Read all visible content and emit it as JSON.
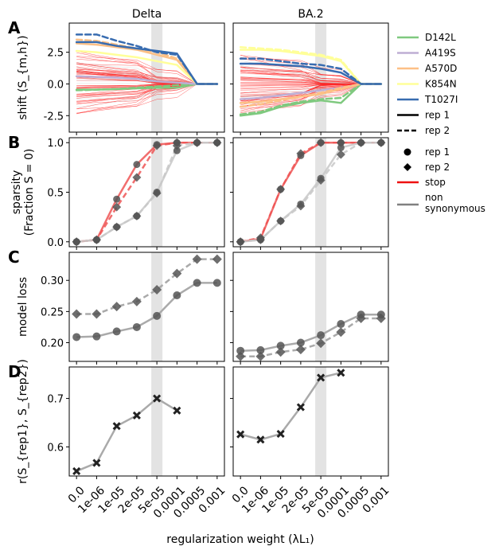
{
  "figure": {
    "x_label": "regularization weight (λL₁)",
    "x_ticks": [
      "0.0",
      "1e-06",
      "1e-05",
      "2e-05",
      "5e-05",
      "0.0001",
      "0.0005",
      "0.001"
    ],
    "columns": [
      "Delta",
      "BA.2"
    ],
    "highlight_x_index": 4
  },
  "legend_top": {
    "entries": [
      {
        "label": "D142L",
        "color": "#7fc97f",
        "style": "solid"
      },
      {
        "label": "A419S",
        "color": "#beaed4",
        "style": "solid"
      },
      {
        "label": "A570D",
        "color": "#fdc086",
        "style": "solid"
      },
      {
        "label": "K854N",
        "color": "#ffff99",
        "style": "solid"
      },
      {
        "label": "T1027I",
        "color": "#386cb0",
        "style": "solid"
      },
      {
        "label": "rep 1",
        "color": "#000000",
        "style": "solid"
      },
      {
        "label": "rep 2",
        "color": "#000000",
        "style": "dashed"
      }
    ]
  },
  "legend_bottom": {
    "entries": [
      {
        "label": "rep 1",
        "marker": "circle"
      },
      {
        "label": "rep 2",
        "marker": "diamond"
      },
      {
        "label": "stop",
        "color": "#ee1111",
        "style": "line"
      },
      {
        "label": "non\nsynonymous",
        "color": "#808080",
        "style": "line"
      }
    ]
  },
  "chart_data": [
    {
      "panel": "A",
      "type": "line",
      "ylabel": "shift (S_{m,h})",
      "ylim": [
        -3.8,
        4.8
      ],
      "yticks": [
        -2.5,
        0.0,
        2.5
      ],
      "subplots": [
        {
          "title": "Delta",
          "series": [
            {
              "name": "D142L",
              "rep": 1,
              "values": [
                -0.45,
                -0.45,
                -0.4,
                -0.35,
                -0.3,
                -0.3,
                0.0,
                0.0
              ]
            },
            {
              "name": "D142L",
              "rep": 2,
              "values": [
                -0.5,
                -0.45,
                -0.4,
                -0.3,
                -0.2,
                -0.1,
                0.0,
                0.0
              ]
            },
            {
              "name": "A419S",
              "rep": 1,
              "values": [
                0.6,
                0.55,
                0.5,
                0.4,
                0.2,
                0.1,
                0.0,
                0.0
              ]
            },
            {
              "name": "A570D",
              "rep": 1,
              "values": [
                3.2,
                3.1,
                2.9,
                2.7,
                2.3,
                1.9,
                0.0,
                0.0
              ]
            },
            {
              "name": "A570D",
              "rep": 2,
              "values": [
                3.5,
                3.4,
                3.1,
                2.8,
                2.5,
                2.0,
                0.0,
                0.0
              ]
            },
            {
              "name": "K854N",
              "rep": 1,
              "values": [
                2.6,
                2.5,
                2.3,
                2.1,
                1.8,
                1.5,
                0.0,
                0.0
              ]
            },
            {
              "name": "T1027I",
              "rep": 1,
              "values": [
                3.3,
                3.3,
                3.0,
                2.8,
                2.6,
                2.4,
                0.0,
                0.0
              ]
            },
            {
              "name": "T1027I",
              "rep": 2,
              "values": [
                3.9,
                3.9,
                3.4,
                3.0,
                2.5,
                2.3,
                0.0,
                0.0
              ]
            }
          ]
        },
        {
          "title": "BA.2",
          "series": [
            {
              "name": "D142L",
              "rep": 1,
              "values": [
                -2.5,
                -2.3,
                -1.8,
                -1.5,
                -1.3,
                -1.5,
                0.0,
                0.0
              ]
            },
            {
              "name": "D142L",
              "rep": 2,
              "values": [
                -2.4,
                -2.2,
                -1.7,
                -1.4,
                -1.2,
                -1.1,
                0.0,
                0.0
              ]
            },
            {
              "name": "A419S",
              "rep": 1,
              "values": [
                -1.2,
                -1.1,
                -0.9,
                -0.7,
                -0.5,
                -0.3,
                0.0,
                0.0
              ]
            },
            {
              "name": "A570D",
              "rep": 1,
              "values": [
                -1.5,
                -1.4,
                -1.2,
                -1.0,
                -0.8,
                -0.4,
                0.0,
                0.0
              ]
            },
            {
              "name": "A570D",
              "rep": 2,
              "values": [
                -1.8,
                -1.6,
                -1.3,
                -1.0,
                -0.7,
                -0.3,
                0.0,
                0.0
              ]
            },
            {
              "name": "K854N",
              "rep": 1,
              "values": [
                2.7,
                2.7,
                2.6,
                2.4,
                2.2,
                1.8,
                0.0,
                0.0
              ]
            },
            {
              "name": "K854N",
              "rep": 2,
              "values": [
                2.9,
                2.8,
                2.7,
                2.5,
                2.3,
                1.9,
                0.0,
                0.0
              ]
            },
            {
              "name": "T1027I",
              "rep": 1,
              "values": [
                1.6,
                1.6,
                1.5,
                1.4,
                1.2,
                0.9,
                0.0,
                0.0
              ]
            },
            {
              "name": "T1027I",
              "rep": 2,
              "values": [
                2.0,
                2.0,
                1.8,
                1.6,
                1.5,
                1.2,
                0.0,
                0.0
              ]
            }
          ]
        }
      ]
    },
    {
      "panel": "B",
      "type": "line",
      "ylabel": "sparsity\n(Fraction S = 0)",
      "ylim": [
        -0.05,
        1.05
      ],
      "yticks": [
        0.0,
        0.5,
        1.0
      ],
      "subplots": [
        {
          "title": "Delta",
          "series": [
            {
              "name": "stop",
              "rep": 1,
              "values": [
                0.0,
                0.02,
                0.43,
                0.78,
                0.98,
                1.0,
                1.0,
                1.0
              ]
            },
            {
              "name": "stop",
              "rep": 2,
              "values": [
                0.0,
                0.02,
                0.35,
                0.65,
                0.97,
                1.0,
                1.0,
                1.0
              ]
            },
            {
              "name": "non synonymous",
              "rep": 1,
              "values": [
                0.0,
                0.02,
                0.15,
                0.26,
                0.5,
                0.92,
                1.0,
                1.0
              ]
            },
            {
              "name": "non synonymous",
              "rep": 2,
              "values": [
                0.0,
                0.02,
                0.15,
                0.26,
                0.49,
                0.97,
                1.0,
                1.0
              ]
            }
          ]
        },
        {
          "title": "BA.2",
          "series": [
            {
              "name": "stop",
              "rep": 1,
              "values": [
                0.0,
                0.03,
                0.53,
                0.87,
                1.0,
                1.0,
                1.0,
                1.0
              ]
            },
            {
              "name": "stop",
              "rep": 2,
              "values": [
                0.0,
                0.04,
                0.53,
                0.89,
                1.0,
                1.0,
                1.0,
                1.0
              ]
            },
            {
              "name": "non synonymous",
              "rep": 1,
              "values": [
                0.0,
                0.02,
                0.21,
                0.38,
                0.64,
                0.95,
                1.0,
                1.0
              ]
            },
            {
              "name": "non synonymous",
              "rep": 2,
              "values": [
                0.0,
                0.02,
                0.21,
                0.36,
                0.62,
                0.88,
                1.0,
                1.0
              ]
            }
          ]
        }
      ]
    },
    {
      "panel": "C",
      "type": "line",
      "ylabel": "model loss",
      "ylim": [
        0.17,
        0.345
      ],
      "yticks": [
        0.2,
        0.25,
        0.3
      ],
      "subplots": [
        {
          "title": "Delta",
          "series": [
            {
              "name": "rep 1",
              "values": [
                0.209,
                0.21,
                0.218,
                0.225,
                0.243,
                0.276,
                0.296,
                0.296
              ]
            },
            {
              "name": "rep 2",
              "values": [
                0.246,
                0.246,
                0.258,
                0.266,
                0.285,
                0.311,
                0.334,
                0.334
              ]
            }
          ]
        },
        {
          "title": "BA.2",
          "series": [
            {
              "name": "rep 1",
              "values": [
                0.187,
                0.188,
                0.195,
                0.2,
                0.212,
                0.23,
                0.245,
                0.245
              ]
            },
            {
              "name": "rep 2",
              "values": [
                0.178,
                0.178,
                0.185,
                0.189,
                0.199,
                0.217,
                0.239,
                0.239
              ]
            }
          ]
        }
      ]
    },
    {
      "panel": "D",
      "type": "line",
      "ylabel": "r(S_{rep1}, S_{rep2})",
      "ylim": [
        0.54,
        0.765
      ],
      "yticks": [
        0.6,
        0.7
      ],
      "subplots": [
        {
          "title": "Delta",
          "values": [
            0.55,
            0.567,
            0.643,
            0.665,
            0.7,
            0.675,
            null,
            null
          ]
        },
        {
          "title": "BA.2",
          "values": [
            0.626,
            0.615,
            0.627,
            0.682,
            0.743,
            0.753,
            null,
            null
          ]
        }
      ]
    }
  ]
}
